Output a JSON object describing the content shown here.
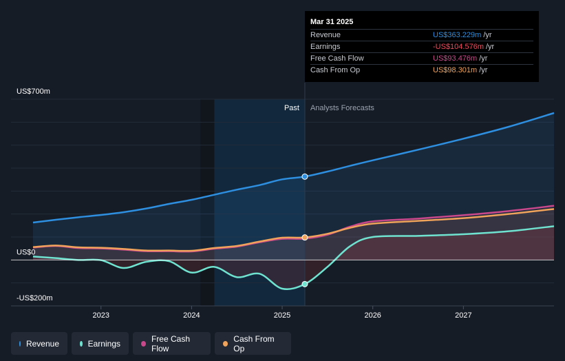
{
  "tooltip": {
    "date": "Mar 31 2025",
    "rows": [
      {
        "label": "Revenue",
        "value": "US$363.229m",
        "unit": "/yr",
        "color": "#2e8fe0"
      },
      {
        "label": "Earnings",
        "value": "-US$104.576m",
        "unit": "/yr",
        "color": "#ef4a5d"
      },
      {
        "label": "Free Cash Flow",
        "value": "US$93.476m",
        "unit": "/yr",
        "color": "#c9488c"
      },
      {
        "label": "Cash From Op",
        "value": "US$98.301m",
        "unit": "/yr",
        "color": "#f0a35a"
      }
    ]
  },
  "legend": [
    {
      "label": "Revenue",
      "color": "#2e8fe0"
    },
    {
      "label": "Earnings",
      "color": "#6fe3d0"
    },
    {
      "label": "Free Cash Flow",
      "color": "#c9488c"
    },
    {
      "label": "Cash From Op",
      "color": "#f0a35a"
    }
  ],
  "chart_data": {
    "type": "line",
    "title": "",
    "xlabel": "",
    "ylabel": "",
    "y_unit": "US$m",
    "ylim": [
      -200,
      700
    ],
    "ytick_labels": [
      {
        "value": 700,
        "label": "US$700m"
      },
      {
        "value": 0,
        "label": "US$0"
      },
      {
        "value": -200,
        "label": "-US$200m"
      }
    ],
    "xlim": [
      2022.25,
      2028.0
    ],
    "xticks": [
      2023,
      2024,
      2025,
      2026,
      2027
    ],
    "xtick_labels": [
      "2023",
      "2024",
      "2025",
      "2026",
      "2027"
    ],
    "divider_x": 2025.25,
    "past_label": "Past",
    "forecast_label": "Analysts Forecasts",
    "shaded_start_x": 2024.25,
    "series": [
      {
        "name": "Revenue",
        "color": "#2e8fe0",
        "x": [
          2022.25,
          2022.5,
          2022.75,
          2023.0,
          2023.25,
          2023.5,
          2023.75,
          2024.0,
          2024.25,
          2024.5,
          2024.75,
          2025.0,
          2025.25,
          2025.5,
          2025.75,
          2026.0,
          2026.5,
          2027.0,
          2027.5,
          2028.0
        ],
        "values": [
          163,
          175,
          186,
          196,
          208,
          224,
          244,
          262,
          284,
          306,
          326,
          351,
          363,
          385,
          410,
          434,
          480,
          528,
          580,
          640
        ]
      },
      {
        "name": "Earnings",
        "color": "#6fe3d0",
        "x": [
          2022.25,
          2022.5,
          2022.75,
          2023.0,
          2023.25,
          2023.5,
          2023.75,
          2024.0,
          2024.25,
          2024.5,
          2024.75,
          2025.0,
          2025.25,
          2025.5,
          2025.75,
          2026.0,
          2026.5,
          2027.0,
          2027.5,
          2028.0
        ],
        "values": [
          15,
          8,
          0,
          -1,
          -35,
          -8,
          -5,
          -55,
          -30,
          -75,
          -60,
          -125,
          -105,
          -30,
          60,
          100,
          105,
          112,
          125,
          147
        ]
      },
      {
        "name": "Free Cash Flow",
        "color": "#c9488c",
        "x": [
          2022.25,
          2022.5,
          2022.75,
          2023.0,
          2023.25,
          2023.5,
          2023.75,
          2024.0,
          2024.25,
          2024.5,
          2024.75,
          2025.0,
          2025.25,
          2025.5,
          2025.75,
          2026.0,
          2026.5,
          2027.0,
          2027.5,
          2028.0
        ],
        "values": [
          54,
          61,
          52,
          50,
          45,
          38,
          38,
          37,
          49,
          58,
          77,
          92,
          93,
          110,
          145,
          168,
          180,
          195,
          213,
          236
        ]
      },
      {
        "name": "Cash From Op",
        "color": "#f0a35a",
        "x": [
          2022.25,
          2022.5,
          2022.75,
          2023.0,
          2023.25,
          2023.5,
          2023.75,
          2024.0,
          2024.25,
          2024.5,
          2024.75,
          2025.0,
          2025.25,
          2025.5,
          2025.75,
          2026.0,
          2026.5,
          2027.0,
          2027.5,
          2028.0
        ],
        "values": [
          56,
          63,
          55,
          53,
          48,
          41,
          41,
          40,
          52,
          61,
          80,
          97,
          98,
          114,
          140,
          158,
          170,
          182,
          200,
          222
        ]
      }
    ],
    "highlight_x": 2025.25
  }
}
